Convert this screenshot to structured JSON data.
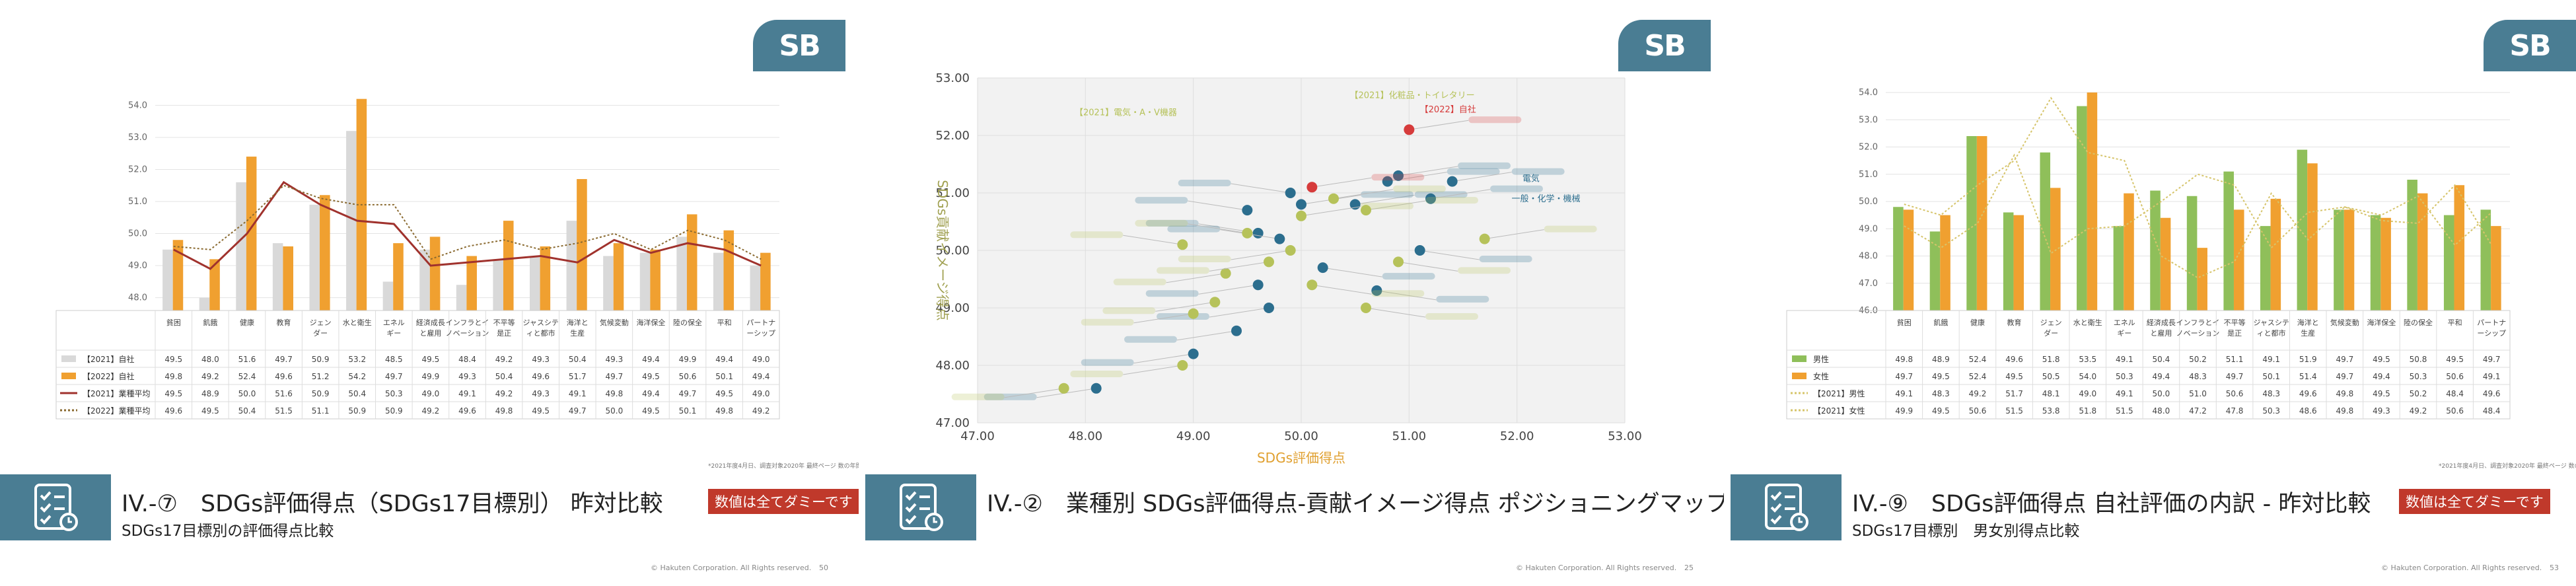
{
  "categories": [
    "貧困",
    "飢餓",
    "健康",
    "教育",
    "ジェンダー",
    "水と衛生",
    "エネルギー",
    "経済成長と雇用",
    "インフラとイノベーション",
    "不平等是正",
    "ジャスシティと都市",
    "海洋と生産",
    "気候変動",
    "海洋保全",
    "陸の保全",
    "平和",
    "パートナーシップ"
  ],
  "slide1": {
    "logo": "SB",
    "title": "IV.-⑦　SDGs評価得点（SDGs17目標別） 昨対比較",
    "dummy_badge": "数値は全てダミーです",
    "subtitle": "SDGs17目標別の評価得点比較",
    "note": "*2021年度4月日、調査対象2020年 最終ページ 数の年間",
    "copyright": "© Hakuten Corporation. All Rights reserved.",
    "page_number": "50",
    "colors": {
      "bar2021": "#d9d9d9",
      "bar2022": "#f0a030",
      "line1": "#a0322d",
      "line2": "#8a6a30"
    },
    "chart_data": {
      "type": "bar",
      "ylim": [
        47.6,
        54.4
      ],
      "yticks": [
        "48.0",
        "49.0",
        "50.0",
        "51.0",
        "52.0",
        "53.0",
        "54.0"
      ],
      "categories_display": [
        "貧困",
        "飢餓",
        "健康",
        "教育",
        "ジェンダー",
        "水と衛生",
        "エネルギー",
        "経済成長と雇用",
        "インフラとイノベーション",
        "不平等是正",
        "ジャスシティと都市",
        "海洋と生産",
        "気候変動",
        "海洋保全",
        "陸の保全",
        "平和",
        "パートナーシップ"
      ],
      "series": [
        {
          "name": "【2021】自社",
          "kind": "bar",
          "values": [
            49.5,
            48.0,
            51.6,
            49.7,
            50.9,
            53.2,
            48.5,
            49.5,
            48.4,
            49.2,
            49.3,
            50.4,
            49.3,
            49.4,
            49.9,
            49.4,
            49.0
          ]
        },
        {
          "name": "【2022】自社",
          "kind": "bar",
          "values": [
            49.8,
            49.2,
            52.4,
            49.6,
            51.2,
            54.2,
            49.7,
            49.9,
            49.3,
            50.4,
            49.6,
            51.7,
            49.7,
            49.5,
            50.6,
            50.1,
            49.4
          ]
        },
        {
          "name": "【2021】業種平均",
          "kind": "line",
          "values": [
            49.5,
            48.9,
            50.0,
            51.6,
            50.9,
            50.4,
            50.3,
            49.0,
            49.1,
            49.2,
            49.3,
            49.1,
            49.8,
            49.4,
            49.7,
            49.5,
            49.0
          ]
        },
        {
          "name": "【2022】業種平均",
          "kind": "dotted",
          "values": [
            49.6,
            49.5,
            50.4,
            51.5,
            51.1,
            50.9,
            50.9,
            49.2,
            49.6,
            49.8,
            49.5,
            49.7,
            50.0,
            49.5,
            50.1,
            49.8,
            49.2
          ]
        }
      ]
    }
  },
  "slide2": {
    "logo": "SB",
    "title": "IV.-②　業種別 SDGs評価得点-貢献イメージ得点 ポジショニングマップ",
    "copyright": "© Hakuten Corporation. All Rights reserved.",
    "page_number": "25",
    "colors": {
      "blue": "#2c6e8e",
      "olive": "#b6c25a",
      "red": "#d63b3b",
      "plot_bg": "#f2f2f2"
    },
    "chart_data": {
      "type": "scatter",
      "xlabel": "SDGs評価得点",
      "ylabel": "SDGs貢献イメージ得点",
      "xlim": [
        47.0,
        53.0
      ],
      "ylim": [
        47.0,
        53.0
      ],
      "xticks": [
        "47.00",
        "48.00",
        "49.00",
        "50.00",
        "51.00",
        "52.00",
        "53.00"
      ],
      "yticks": [
        "47.00",
        "48.00",
        "49.00",
        "50.00",
        "51.00",
        "52.00",
        "53.00"
      ],
      "series": [
        {
          "name": "2021",
          "color": "blue",
          "points": [
            [
              48.1,
              47.6
            ],
            [
              49.0,
              48.2
            ],
            [
              49.5,
              50.7
            ],
            [
              49.6,
              50.3
            ],
            [
              49.8,
              50.2
            ],
            [
              49.6,
              49.4
            ],
            [
              49.4,
              48.6
            ],
            [
              49.7,
              49.0
            ],
            [
              50.2,
              49.7
            ],
            [
              50.5,
              50.8
            ],
            [
              50.8,
              51.2
            ],
            [
              50.9,
              51.3
            ],
            [
              51.2,
              50.9
            ],
            [
              51.4,
              51.2
            ],
            [
              51.1,
              50.0
            ],
            [
              50.7,
              49.3
            ],
            [
              50.0,
              50.8
            ],
            [
              49.9,
              51.0
            ]
          ]
        },
        {
          "name": "2022",
          "color": "olive",
          "points": [
            [
              47.8,
              47.6
            ],
            [
              48.9,
              48.0
            ],
            [
              49.3,
              49.6
            ],
            [
              49.2,
              49.1
            ],
            [
              49.5,
              50.3
            ],
            [
              49.9,
              50.0
            ],
            [
              50.3,
              50.9
            ],
            [
              50.6,
              50.7
            ],
            [
              50.9,
              49.8
            ],
            [
              51.7,
              50.2
            ],
            [
              49.7,
              49.8
            ],
            [
              50.1,
              49.4
            ],
            [
              50.0,
              50.6
            ],
            [
              48.9,
              50.1
            ],
            [
              50.6,
              49.0
            ],
            [
              49.0,
              48.9
            ]
          ]
        },
        {
          "name": "自社",
          "color": "red",
          "points": [
            [
              50.1,
              51.1
            ],
            [
              51.0,
              52.1
            ]
          ]
        }
      ],
      "annotations": [
        "【2021】電気・A・V機器",
        "【2021】化粧品・トイレタリー",
        "【2022】自社",
        "電気",
        "一般・化学・機械"
      ]
    }
  },
  "slide3": {
    "logo": "SB",
    "title": "IV.-⑨　SDGs評価得点 自社評価の内訳 - 昨対比較",
    "dummy_badge": "数値は全てダミーです",
    "subtitle": "SDGs17目標別　男女別得点比較",
    "note": "*2021年度4月日、調査対象2020年 最終ページ 数の年間",
    "copyright": "© Hakuten Corporation. All Rights reserved.",
    "page_number": "53",
    "colors": {
      "male": "#8fbf5a",
      "female": "#f0a030",
      "line1": "#d6c46a",
      "line2": "#d6c46a"
    },
    "chart_data": {
      "type": "bar",
      "ylim": [
        46.0,
        54.0
      ],
      "yticks": [
        "46.0",
        "47.0",
        "48.0",
        "49.0",
        "50.0",
        "51.0",
        "52.0",
        "53.0",
        "54.0"
      ],
      "categories_display": [
        "貧困",
        "飢餓",
        "健康",
        "教育",
        "ジェンダー",
        "水と衛生",
        "エネルギー",
        "経済成長と雇用",
        "インフラとイノベーション",
        "不平等是正",
        "ジャスシティと都市",
        "海洋と生産",
        "気候変動",
        "海洋保全",
        "陸の保全",
        "平和",
        "パートナーシップ"
      ],
      "series": [
        {
          "name": "男性",
          "kind": "bar",
          "values": [
            49.8,
            48.9,
            52.4,
            49.6,
            51.8,
            53.5,
            49.1,
            50.4,
            50.2,
            51.1,
            49.1,
            51.9,
            49.7,
            49.5,
            50.8,
            49.5,
            49.7
          ]
        },
        {
          "name": "女性",
          "kind": "bar",
          "values": [
            49.7,
            49.5,
            52.4,
            49.5,
            50.5,
            54.0,
            50.3,
            49.4,
            48.3,
            49.7,
            50.1,
            51.4,
            49.7,
            49.4,
            50.3,
            50.6,
            49.1
          ]
        },
        {
          "name": "【2021】男性",
          "kind": "dotted",
          "values": [
            49.1,
            48.3,
            49.2,
            51.7,
            48.1,
            49.0,
            49.1,
            50.0,
            51.0,
            50.6,
            48.3,
            49.6,
            49.8,
            49.5,
            50.2,
            48.4,
            49.6
          ]
        },
        {
          "name": "【2021】女性",
          "kind": "dotted2",
          "values": [
            49.9,
            49.5,
            50.6,
            51.5,
            53.8,
            51.8,
            51.5,
            48.0,
            47.2,
            47.8,
            50.3,
            48.6,
            49.8,
            49.3,
            49.2,
            50.6,
            48.4
          ]
        }
      ]
    }
  }
}
